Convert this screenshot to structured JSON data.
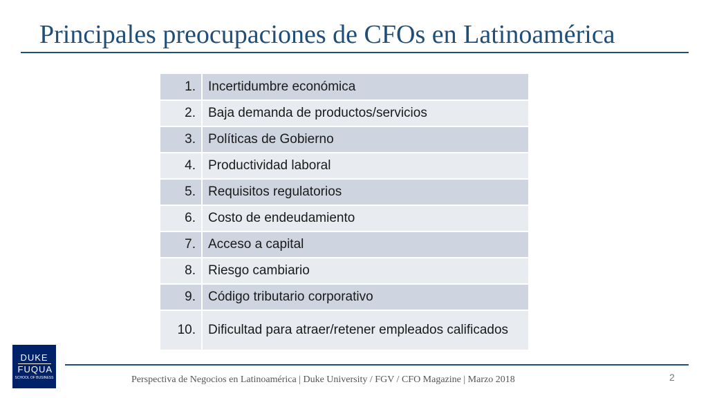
{
  "slide": {
    "title": "Principales preocupaciones de CFOs en Latinoamérica",
    "concerns": [
      {
        "num": "1.",
        "text": "Incertidumbre económica"
      },
      {
        "num": "2.",
        "text": "Baja demanda de productos/servicios"
      },
      {
        "num": "3.",
        "text": "Políticas de Gobierno"
      },
      {
        "num": "4.",
        "text": "Productividad laboral"
      },
      {
        "num": "5.",
        "text": "Requisitos regulatorios"
      },
      {
        "num": "6.",
        "text": "Costo de endeudamiento"
      },
      {
        "num": "7.",
        "text": "Acceso a capital"
      },
      {
        "num": "8.",
        "text": "Riesgo cambiario"
      },
      {
        "num": "9.",
        "text": "Código tributario corporativo"
      },
      {
        "num": "10.",
        "text": "Dificultad para atraer/retener empleados calificados"
      }
    ],
    "logo": {
      "line1": "DUKE",
      "line2": "FUQUA",
      "line3": "SCHOOL OF BUSINESS"
    },
    "footer": "Perspectiva de Negocios en Latinoamérica | Duke University / FGV / CFO Magazine | Marzo 2018",
    "page_number": "2",
    "colors": {
      "accent": "#1f4e79",
      "row_dark": "#cfd5e0",
      "row_light": "#e8ebf0",
      "logo_bg": "#012169"
    }
  }
}
